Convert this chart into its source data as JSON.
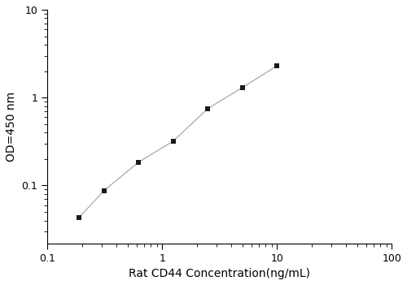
{
  "x": [
    0.188,
    0.313,
    0.625,
    1.25,
    2.5,
    5.0,
    10.0
  ],
  "y": [
    0.043,
    0.088,
    0.185,
    0.32,
    0.75,
    1.3,
    2.3
  ],
  "xlabel": "Rat CD44 Concentration(ng/mL)",
  "ylabel": "OD=450 nm",
  "xlim": [
    0.1,
    100
  ],
  "ylim": [
    0.022,
    10
  ],
  "line_color": "#b0b0b0",
  "marker_color": "#1a1a1a",
  "marker": "s",
  "marker_size": 5,
  "line_width": 1.0,
  "background_color": "#ffffff",
  "xlabel_fontsize": 10,
  "ylabel_fontsize": 10,
  "tick_labelsize": 9
}
